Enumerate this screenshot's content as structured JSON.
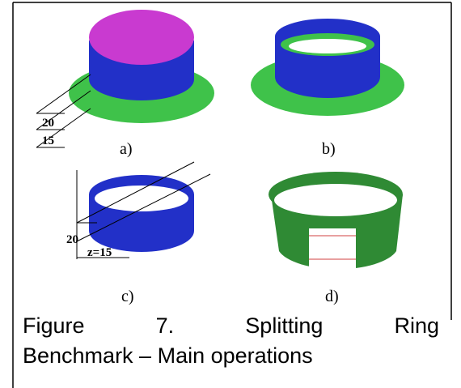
{
  "panels": [
    {
      "label": "a)",
      "dimensions": [
        "20",
        "15"
      ]
    },
    {
      "label": "b)"
    },
    {
      "label": "c)",
      "dimensions": [
        "20",
        "z=15"
      ]
    },
    {
      "label": "d)"
    }
  ],
  "caption": {
    "lines": [
      "Figure 7. Splitting Ring",
      "Benchmark – Main operations"
    ]
  }
}
